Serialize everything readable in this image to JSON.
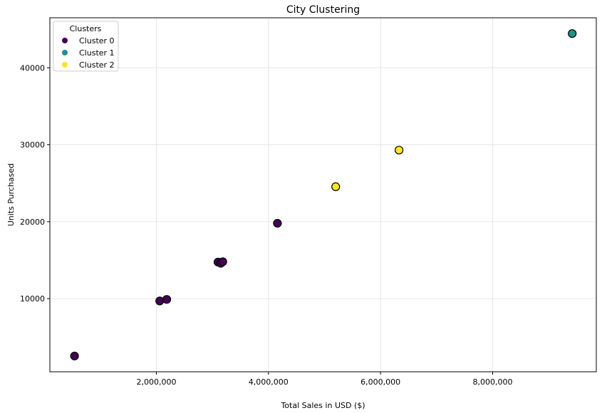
{
  "chart_data": {
    "type": "scatter",
    "title": "City Clustering",
    "xlabel": "Total Sales  in USD ($)",
    "ylabel": "Units Purchased",
    "xlim": [
      100000,
      9850000
    ],
    "ylim": [
      500,
      46500
    ],
    "xticks": [
      2000000,
      4000000,
      6000000,
      8000000
    ],
    "xtick_labels": [
      "2,000,000",
      "4,000,000",
      "6,000,000",
      "8,000,000"
    ],
    "yticks": [
      10000,
      20000,
      30000,
      40000
    ],
    "ytick_labels": [
      "10000",
      "20000",
      "30000",
      "40000"
    ],
    "grid": true,
    "legend": {
      "title": "Clusters",
      "placement": "top-left"
    },
    "series": [
      {
        "name": "Cluster 0",
        "color": "#440154",
        "points": [
          {
            "x": 540000,
            "y": 2550
          },
          {
            "x": 2060000,
            "y": 9700
          },
          {
            "x": 2185000,
            "y": 9900
          },
          {
            "x": 3100000,
            "y": 14750
          },
          {
            "x": 3150000,
            "y": 14600
          },
          {
            "x": 3185000,
            "y": 14800
          },
          {
            "x": 4160000,
            "y": 19800
          }
        ]
      },
      {
        "name": "Cluster 1",
        "color": "#21918c",
        "points": [
          {
            "x": 9420000,
            "y": 44450
          }
        ]
      },
      {
        "name": "Cluster 2",
        "color": "#fde725",
        "points": [
          {
            "x": 5200000,
            "y": 24550
          },
          {
            "x": 6330000,
            "y": 29300
          }
        ]
      }
    ]
  }
}
